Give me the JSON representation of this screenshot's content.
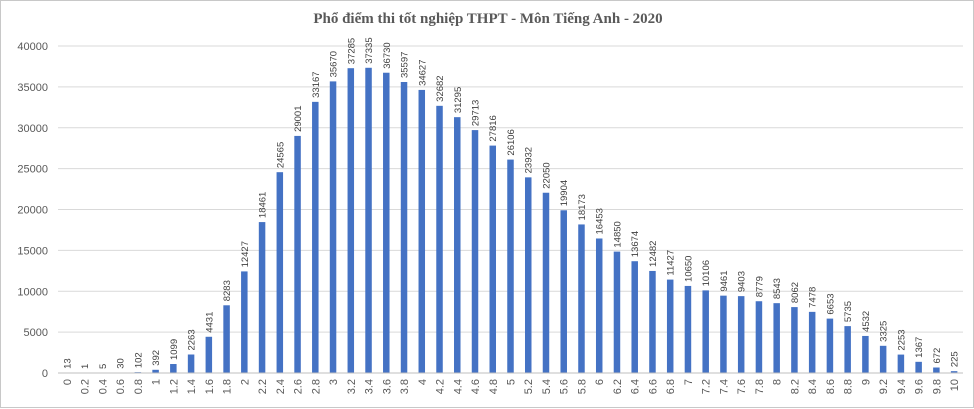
{
  "chart_data": {
    "type": "bar",
    "title": "Phổ điểm thi tốt nghiệp THPT - Môn Tiếng Anh - 2020",
    "xlabel": "",
    "ylabel": "",
    "ylim": [
      0,
      40000
    ],
    "yticks": [
      "0",
      "5000",
      "10000",
      "15000",
      "20000",
      "25000",
      "30000",
      "35000",
      "40000"
    ],
    "grid": true,
    "bar_color": "#4472C4",
    "categories": [
      "0",
      "0.2",
      "0.4",
      "0.6",
      "0.8",
      "1",
      "1.2",
      "1.4",
      "1.6",
      "1.8",
      "2",
      "2.2",
      "2.4",
      "2.6",
      "2.8",
      "3",
      "3.2",
      "3.4",
      "3.6",
      "3.8",
      "4",
      "4.2",
      "4.4",
      "4.6",
      "4.8",
      "5",
      "5.2",
      "5.4",
      "5.6",
      "5.8",
      "6",
      "6.2",
      "6.4",
      "6.6",
      "6.8",
      "7",
      "7.2",
      "7.4",
      "7.6",
      "7.8",
      "8",
      "8.2",
      "8.4",
      "8.6",
      "8.8",
      "9",
      "9.2",
      "9.4",
      "9.6",
      "9.8",
      "10"
    ],
    "values": [
      13,
      1,
      5,
      30,
      102,
      392,
      1099,
      2263,
      4431,
      8283,
      12427,
      18461,
      24565,
      29001,
      33167,
      35670,
      37285,
      37335,
      36730,
      35597,
      34627,
      32682,
      31295,
      29713,
      27816,
      26106,
      23932,
      22050,
      19904,
      18173,
      16453,
      14850,
      13674,
      12482,
      11427,
      10650,
      10106,
      9461,
      9403,
      8779,
      8543,
      8062,
      7478,
      6653,
      5735,
      4532,
      3325,
      2253,
      1367,
      672,
      225
    ]
  }
}
